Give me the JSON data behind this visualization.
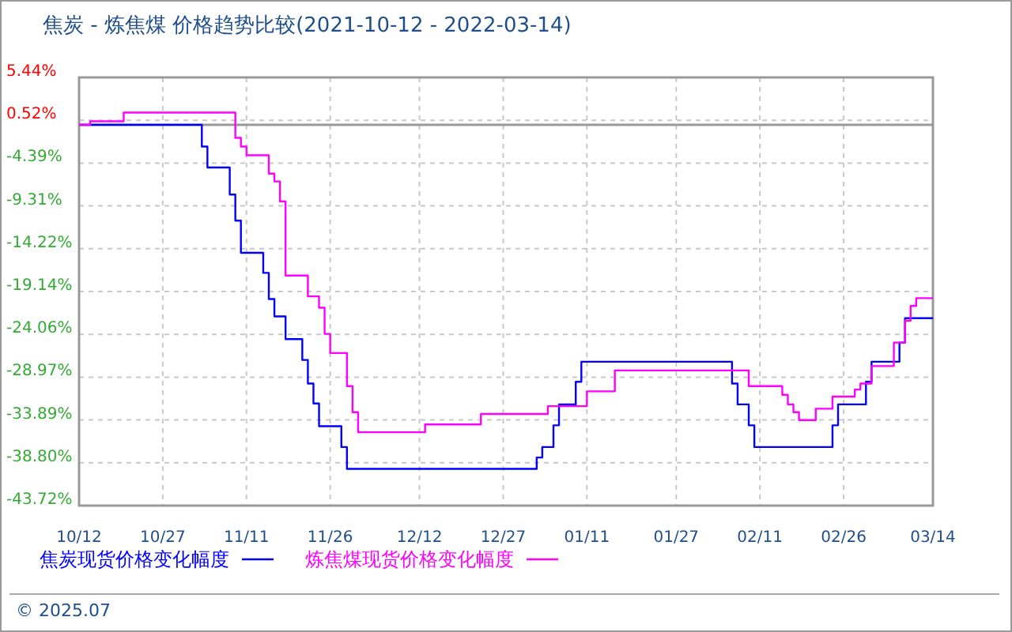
{
  "chart_data": {
    "type": "step",
    "title": "焦炭 - 炼焦煤 价格趋势比较(2021-10-12 - 2022-03-14)",
    "xlim": [
      "2021-10-12",
      "2022-03-14"
    ],
    "xticks": [
      {
        "value": "2021-10-12",
        "label": "10/12"
      },
      {
        "value": "2021-10-27",
        "label": "10/27"
      },
      {
        "value": "2021-11-11",
        "label": "11/11"
      },
      {
        "value": "2021-11-26",
        "label": "11/26"
      },
      {
        "value": "2021-12-12",
        "label": "12/12"
      },
      {
        "value": "2021-12-27",
        "label": "12/27"
      },
      {
        "value": "2022-01-11",
        "label": "01/11"
      },
      {
        "value": "2022-01-27",
        "label": "01/27"
      },
      {
        "value": "2022-02-11",
        "label": "02/11"
      },
      {
        "value": "2022-02-26",
        "label": "02/26"
      },
      {
        "value": "2022-03-14",
        "label": "03/14"
      }
    ],
    "ylim": [
      -43.72,
      5.44
    ],
    "yticks": [
      {
        "value": 5.44,
        "label": "5.44%"
      },
      {
        "value": 0.52,
        "label": "0.52%"
      },
      {
        "value": -4.39,
        "label": "-4.39%"
      },
      {
        "value": -9.31,
        "label": "-9.31%"
      },
      {
        "value": -14.22,
        "label": "-14.22%"
      },
      {
        "value": -19.14,
        "label": "-19.14%"
      },
      {
        "value": -24.06,
        "label": "-24.06%"
      },
      {
        "value": -28.97,
        "label": "-28.97%"
      },
      {
        "value": -33.89,
        "label": "-33.89%"
      },
      {
        "value": -38.8,
        "label": "-38.80%"
      },
      {
        "value": -43.72,
        "label": "-43.72%"
      }
    ],
    "grid": true,
    "legend": "bottom",
    "ref_lines": [
      {
        "axis": "y",
        "value": 0,
        "color": "#999999"
      }
    ],
    "series": [
      {
        "name": "焦炭现货价格变化幅度",
        "color": "#0000ff",
        "x": [
          "2021-10-12",
          "2021-11-03",
          "2021-11-04",
          "2021-11-08",
          "2021-11-09",
          "2021-11-10",
          "2021-11-14",
          "2021-11-15",
          "2021-11-16",
          "2021-11-18",
          "2021-11-21",
          "2021-11-22",
          "2021-11-23",
          "2021-11-24",
          "2021-11-28",
          "2021-11-29",
          "2022-01-02",
          "2022-01-03",
          "2022-01-05",
          "2022-01-06",
          "2022-01-09",
          "2022-01-10",
          "2022-02-06",
          "2022-02-07",
          "2022-02-09",
          "2022-02-10",
          "2022-02-24",
          "2022-02-25",
          "2022-03-02",
          "2022-03-03",
          "2022-03-08",
          "2022-03-09",
          "2022-03-14"
        ],
        "values": [
          0,
          -2.5,
          -4.9,
          -8,
          -11,
          -14.7,
          -17,
          -20,
          -22,
          -24.6,
          -27,
          -29.7,
          -32,
          -34.6,
          -37,
          -39.5,
          -38.2,
          -37,
          -34.5,
          -32.1,
          -29.5,
          -27.2,
          -29.7,
          -32.1,
          -34.5,
          -37,
          -34.5,
          -32.1,
          -29.5,
          -27.2,
          -25,
          -22.2,
          -22.2
        ]
      },
      {
        "name": "炼焦煤现货价格变化幅度",
        "color": "#ff00ff",
        "x": [
          "2021-10-12",
          "2021-10-14",
          "2021-10-20",
          "2021-11-09",
          "2021-11-10",
          "2021-11-11",
          "2021-11-15",
          "2021-11-16",
          "2021-11-17",
          "2021-11-18",
          "2021-11-22",
          "2021-11-24",
          "2021-11-25",
          "2021-11-26",
          "2021-11-29",
          "2021-11-30",
          "2021-12-01",
          "2021-12-13",
          "2021-12-23",
          "2022-01-04",
          "2022-01-11",
          "2022-01-16",
          "2022-02-09",
          "2022-02-15",
          "2022-02-16",
          "2022-02-17",
          "2022-02-18",
          "2022-02-21",
          "2022-02-24",
          "2022-02-28",
          "2022-03-01",
          "2022-03-03",
          "2022-03-07",
          "2022-03-09",
          "2022-03-10",
          "2022-03-11",
          "2022-03-14"
        ],
        "values": [
          0,
          0.4,
          1.4,
          -1.5,
          -2.5,
          -3.5,
          -5.6,
          -6.5,
          -8.8,
          -17.3,
          -19.7,
          -21,
          -24,
          -26.2,
          -30,
          -33,
          -35.3,
          -34.4,
          -33.2,
          -32.3,
          -30.6,
          -28.2,
          -30,
          -31,
          -32.1,
          -33,
          -33.9,
          -32.6,
          -31.2,
          -30.4,
          -29.7,
          -27.7,
          -25,
          -22.5,
          -20.8,
          -19.9,
          -19.9
        ]
      }
    ],
    "annotations": [
      "© 2025.07"
    ]
  }
}
